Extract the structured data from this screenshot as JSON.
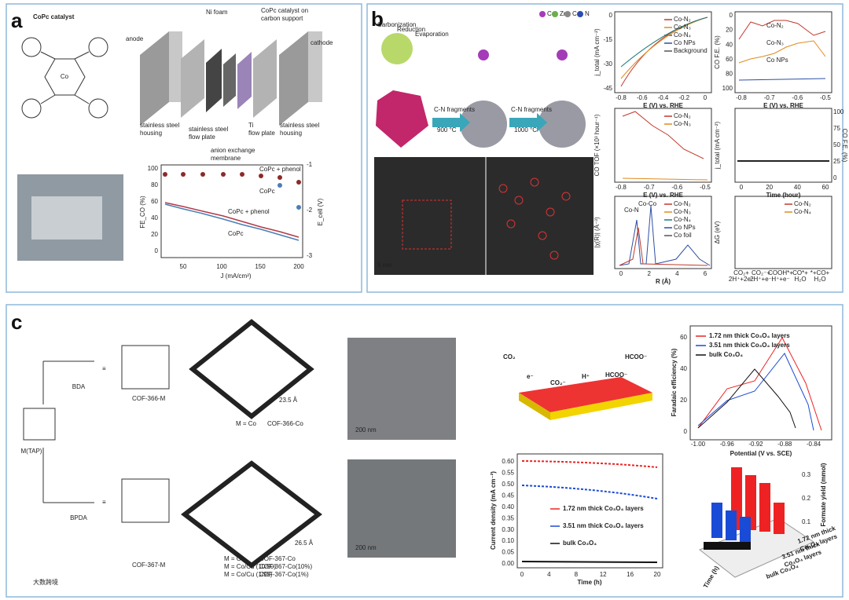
{
  "panel_a": {
    "label": "a",
    "catalyst_title": "CoPc catalyst",
    "molecule_atom": "Co",
    "cell_labels": [
      "anode",
      "Ni foam",
      "CoPc catalyst on",
      "carbon support",
      "cathode",
      "stainless steel",
      "housing",
      "stainless steel",
      "flow plate",
      "anion exchange",
      "membrane",
      "Ti",
      "flow plate",
      "stainless steel",
      "housing"
    ],
    "chart": {
      "y_label": "FE_CO (%)",
      "y2_label": "E_cell (V)",
      "x_label": "J (mA/cm²)",
      "xticks": [
        "50",
        "100",
        "150",
        "200"
      ],
      "yticks": [
        "0",
        "20",
        "40",
        "60",
        "80",
        "100"
      ],
      "y2ticks": [
        "-1",
        "-2",
        "-3"
      ],
      "labels": [
        "CoPc + phenol",
        "CoPc",
        "CoPc + phenol",
        "CoPc"
      ]
    }
  },
  "panel_b": {
    "label": "b",
    "schematic": [
      "Carbonization",
      "Reduction",
      "Evaporation",
      "C-N fragments",
      "900 °C",
      "C-N fragments",
      "1000 °C"
    ],
    "atoms": [
      "Co",
      "Zn",
      "C",
      "N"
    ],
    "scale": "5 nm",
    "charts": [
      {
        "y_label": "j_total (mA cm⁻²)",
        "x_label": "E (V) vs. RHE",
        "xticks": [
          "-0.8",
          "-0.6",
          "-0.4",
          "-0.2",
          "0"
        ],
        "yticks": [
          "0",
          "-15",
          "-30",
          "-45"
        ],
        "legend": [
          "Co-N₂",
          "Co-N₃",
          "Co-N₄",
          "Co NPs",
          "Background"
        ]
      },
      {
        "y_label": "CO F.E. (%)",
        "x_label": "E (V) vs. RHE",
        "xticks": [
          "-0.8",
          "-0.7",
          "-0.6",
          "-0.5"
        ],
        "yticks": [
          "0",
          "20",
          "40",
          "60",
          "80",
          "100"
        ],
        "legend": [
          "Co-N₂",
          "Co-N₃",
          "Co NPs"
        ]
      },
      {
        "y_label": "CO TOF (×10³ hour⁻¹)",
        "x_label": "E (V) vs. RHE",
        "xticks": [
          "-0.8",
          "-0.7",
          "-0.6",
          "-0.5"
        ],
        "legend": [
          "Co-N₂",
          "Co-N₃"
        ]
      },
      {
        "y_label": "j_total (mA cm⁻²)",
        "y2_label": "CO F.E. (%)",
        "x_label": "Time (hour)",
        "xticks": [
          "0",
          "20",
          "40",
          "60"
        ],
        "y2ticks": [
          "100",
          "75",
          "50",
          "25",
          "0"
        ]
      },
      {
        "y_label": "|χ(R)| (Å⁻³)",
        "x_label": "R (Å)",
        "xticks": [
          "0",
          "2",
          "4",
          "6"
        ],
        "annotations": [
          "Co-Co",
          "Co-N"
        ],
        "legend": [
          "Co-N₂",
          "Co-N₃",
          "Co-N₄",
          "Co NPs",
          "Co foil"
        ]
      },
      {
        "y_label": "ΔG (eV)",
        "legend": [
          "Co-N₂",
          "Co-N₄"
        ],
        "steps": [
          "CO₂+",
          "2H⁺+2e⁻",
          "CO₂⁻+",
          "2H⁺+e⁻",
          "COOH*+",
          "H⁺+e⁻",
          "CO*+",
          "H₂O",
          "*+CO+",
          "H₂O"
        ]
      }
    ]
  },
  "panel_c": {
    "label": "c",
    "scheme": [
      "BDA",
      "BPDA",
      "M(TAP)",
      "COF-366-M",
      "M = Co",
      "COF-366-Co",
      "23.5 Å",
      "COF-367-M",
      "M = Co",
      "M = Co/Cu (10/90)",
      "M = Co/Cu (1/99)",
      "COF-367-Co",
      "COF-367-Co(10%)",
      "COF-367-Co(1%)",
      "26.5 Å",
      "≡",
      "≡"
    ],
    "sem_scale": [
      "200 nm",
      "200 nm"
    ],
    "co2_scheme": [
      "CO₂",
      "HCOO⁻",
      "e⁻",
      "CO₂⁻",
      "H⁺",
      "HCOO⁻"
    ],
    "fe_chart": {
      "y_label": "Faradaic efficiency (%)",
      "x_label": "Potential (V vs. SCE)",
      "xticks": [
        "-1.00",
        "-0.96",
        "-0.92",
        "-0.88",
        "-0.84"
      ],
      "yticks": [
        "0",
        "20",
        "40",
        "60"
      ],
      "legend": [
        "1.72 nm thick Co₃O₄ layers",
        "3.51 nm thick Co₃O₄ layers",
        "bulk Co₃O₄"
      ]
    },
    "current_chart": {
      "y_label": "Current density (mA cm⁻²)",
      "x_label": "Time (h)",
      "xticks": [
        "0",
        "4",
        "8",
        "12",
        "16",
        "20"
      ],
      "yticks": [
        "0.00",
        "0.05",
        "0.10",
        "0.30",
        "0.35",
        "0.40",
        "0.45",
        "0.50",
        "0.55",
        "0.60"
      ],
      "legend": [
        "1.72 nm thick Co₃O₄ layers",
        "3.51 nm thick Co₃O₄ layers",
        "bulk Co₃O₄"
      ]
    },
    "bar3d": {
      "z_label": "Formate yield (mmol)",
      "zticks": [
        "0.1",
        "0.2",
        "0.3"
      ],
      "x_label": "Time (h)",
      "rows": [
        "1.72 nm thick",
        "Co₃O₄ layers",
        "3.51 nm thick",
        "Co₃O₄ layers",
        "bulk Co₃O₄"
      ]
    }
  },
  "watermark": "大数跨境"
}
